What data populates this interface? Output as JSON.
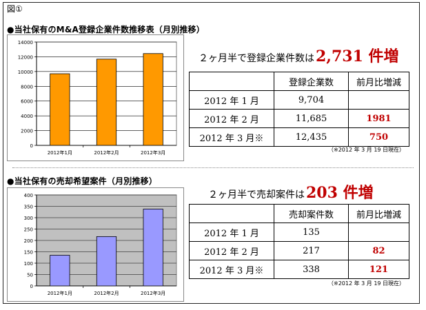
{
  "figure_label": "図①",
  "sections": [
    {
      "title": "●当社保有のM&A登録企業件数推移表（月別推移）",
      "headline_prefix": "２ヶ月半で登録企業件数は",
      "headline_number": "2,731 件増",
      "table": {
        "headers": [
          "",
          "登録企業数",
          "前月比増減"
        ],
        "rows": [
          {
            "label": "2012 年 1 月",
            "value": "9,704",
            "diff": ""
          },
          {
            "label": "2012 年 2 月",
            "value": "11,685",
            "diff": "1981"
          },
          {
            "label": "2012 年 3 月※",
            "value": "12,435",
            "diff": "750"
          }
        ]
      },
      "note": "（※2012 年 3 月 19 日現在）"
    },
    {
      "title": "●当社保有の売却希望案件（月別推移）",
      "headline_prefix": "２ヶ月半で売却案件は",
      "headline_number": "203 件増",
      "table": {
        "headers": [
          "",
          "売却案件数",
          "前月比増減"
        ],
        "rows": [
          {
            "label": "2012 年 1 月",
            "value": "135",
            "diff": ""
          },
          {
            "label": "2012 年 2 月",
            "value": "217",
            "diff": "82"
          },
          {
            "label": "2012 年 3 月※",
            "value": "338",
            "diff": "121"
          }
        ]
      },
      "note": "（※2012 年 3 月 19 日現在）"
    }
  ],
  "chart_data": [
    {
      "type": "bar",
      "categories": [
        "2012年1月",
        "2012年2月",
        "2012年3月"
      ],
      "values": [
        9704,
        11685,
        12435
      ],
      "yticks": [
        "0",
        "2000",
        "4000",
        "6000",
        "8000",
        "10000",
        "12000",
        "14000"
      ],
      "ylim": [
        0,
        14000
      ],
      "grid": true,
      "bar_color": "#ff9900",
      "plot_bg": "#ffffff"
    },
    {
      "type": "bar",
      "categories": [
        "2012年1月",
        "2012年2月",
        "2012年3月"
      ],
      "values": [
        135,
        217,
        338
      ],
      "yticks": [
        "0",
        "50",
        "100",
        "150",
        "200",
        "250",
        "300",
        "350",
        "400"
      ],
      "ylim": [
        0,
        400
      ],
      "grid": true,
      "bar_color": "#9999ff",
      "plot_bg": "#c0c0c0"
    }
  ]
}
